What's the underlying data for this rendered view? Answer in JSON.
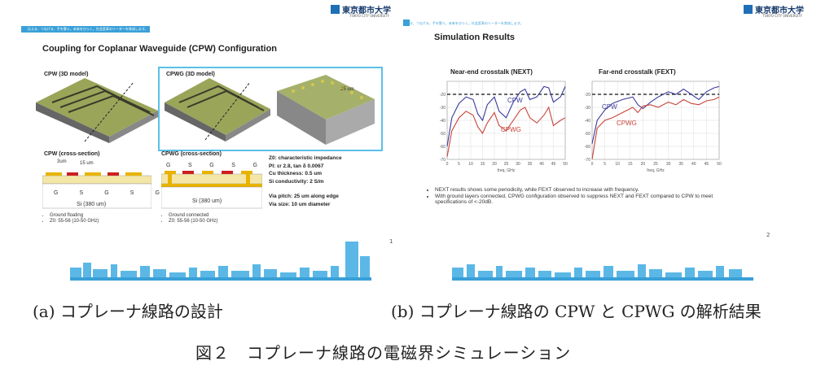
{
  "logo": {
    "name": "東京都市大学",
    "sub": "TOKYO CITY UNIVERSITY"
  },
  "band_text": "伝える、つなげる、手を繋ぐ。未来をひらく。社会変革のリーダーを育成します。",
  "slide_a": {
    "title": "Coupling for Coplanar Waveguide (CPW) Configuration",
    "cpw_3d": "CPW (3D model)",
    "cpwg_3d": "CPWG (3D model)",
    "dim_25um": "25 um",
    "cpw_cs": "CPW (cross-section)",
    "cpwg_cs": "CPWG (cross-section)",
    "dim_3um": "3um",
    "dim_15um": "15 um",
    "cpw_pads": [
      "G",
      "S",
      "G",
      "S",
      "G"
    ],
    "cpwg_pads": [
      "G",
      "S",
      "G",
      "S",
      "G"
    ],
    "si_label": "Si (380 um)",
    "cpw_bullets": [
      "Ground floating",
      "Z0: 55-56 (10-50 GHz)"
    ],
    "cpwg_bullets": [
      "Ground connected",
      "Z0: 55-56 (10-50 GHz)"
    ],
    "params": [
      "Z0: characteristic impedance",
      "PI: εr 2.8, tan δ 0.0067",
      "Cu thickness: 0.5 um",
      "Si conductivity: 2 S/m",
      "",
      "Via pitch: 25 um along edge",
      "Via size: 10 um diameter"
    ],
    "page": "1"
  },
  "slide_b": {
    "title": "Simulation Results",
    "next_title": "Near-end crosstalk (NEXT)",
    "fext_title": "Far-end crosstalk (FEXT)",
    "freq_label": "freq, GHz",
    "bullets": [
      "NEXT results shows some periodicity, while FEXT observed to increase with frequency.",
      "With ground layers connected, CPWG configuration observed to suppress NEXT and FEXT compared to CPW to meet specifications of <-20dB."
    ],
    "page": "2"
  },
  "captions": {
    "a": "(a) コプレーナ線路の設計",
    "b": "(b) コプレーナ線路の CPW と CPWG の解析結果",
    "figure": "図２　コプレーナ線路の電磁界シミュレーション"
  },
  "colors": {
    "cpw": "#3a3a9c",
    "cpwg": "#c8443a",
    "accent": "#3aa0d8"
  },
  "chart_data": [
    {
      "type": "line",
      "title": "Near-end crosstalk (NEXT)",
      "xlabel": "freq, GHz",
      "x_ticks": [
        "0",
        "5",
        "10",
        "15",
        "20",
        "25",
        "30",
        "35",
        "40",
        "45",
        "50"
      ],
      "y_ticks": [
        "-20",
        "-30",
        "-40",
        "-50",
        "-60",
        "-70"
      ],
      "ylim": [
        -70,
        -10
      ],
      "xlim": [
        0,
        50
      ],
      "threshold": -20,
      "series": [
        {
          "name": "CPW",
          "color": "#3a3a9c",
          "x": [
            0,
            2,
            5,
            8,
            11,
            13,
            15,
            17,
            20,
            22,
            25,
            28,
            31,
            33,
            35,
            38,
            41,
            43,
            45,
            48,
            50
          ],
          "y": [
            -60,
            -38,
            -27,
            -22,
            -24,
            -35,
            -40,
            -28,
            -22,
            -33,
            -38,
            -26,
            -18,
            -16,
            -24,
            -22,
            -14,
            -15,
            -26,
            -22,
            -14
          ]
        },
        {
          "name": "CPWG",
          "color": "#c8443a",
          "x": [
            0,
            2,
            5,
            8,
            11,
            13,
            15,
            17,
            20,
            22,
            25,
            28,
            31,
            33,
            35,
            38,
            41,
            43,
            45,
            48,
            50
          ],
          "y": [
            -68,
            -48,
            -38,
            -33,
            -36,
            -45,
            -50,
            -42,
            -34,
            -44,
            -48,
            -40,
            -32,
            -30,
            -38,
            -42,
            -36,
            -30,
            -44,
            -40,
            -38
          ]
        }
      ],
      "annotations": [
        "CPW",
        "CPWG"
      ]
    },
    {
      "type": "line",
      "title": "Far-end crosstalk (FEXT)",
      "xlabel": "freq, GHz",
      "x_ticks": [
        "0",
        "5",
        "10",
        "15",
        "20",
        "25",
        "30",
        "35",
        "40",
        "45",
        "50"
      ],
      "y_ticks": [
        "-20",
        "-30",
        "-40",
        "-50",
        "-60",
        "-70"
      ],
      "ylim": [
        -70,
        -10
      ],
      "xlim": [
        0,
        50
      ],
      "threshold": -20,
      "series": [
        {
          "name": "CPW",
          "color": "#3a3a9c",
          "x": [
            0,
            2,
            5,
            8,
            12,
            16,
            18,
            20,
            23,
            26,
            30,
            33,
            36,
            39,
            42,
            45,
            48,
            50
          ],
          "y": [
            -58,
            -40,
            -32,
            -27,
            -24,
            -22,
            -28,
            -31,
            -26,
            -22,
            -18,
            -20,
            -16,
            -20,
            -24,
            -18,
            -15,
            -14
          ]
        },
        {
          "name": "CPWG",
          "color": "#c8443a",
          "x": [
            0,
            2,
            5,
            8,
            12,
            16,
            18,
            20,
            23,
            26,
            30,
            33,
            36,
            39,
            42,
            45,
            48,
            50
          ],
          "y": [
            -70,
            -46,
            -40,
            -38,
            -34,
            -30,
            -34,
            -29,
            -28,
            -30,
            -26,
            -28,
            -24,
            -27,
            -28,
            -25,
            -24,
            -22
          ]
        }
      ],
      "annotations": [
        "CPW",
        "CPWG"
      ]
    }
  ]
}
